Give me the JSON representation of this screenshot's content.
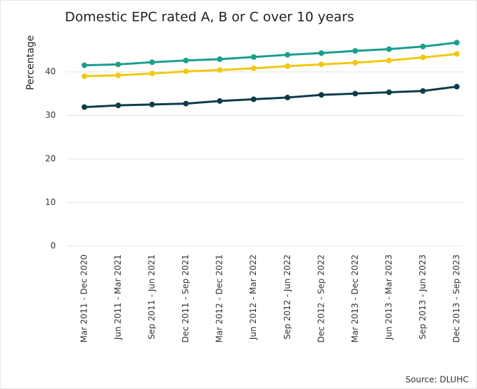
{
  "chart_data": {
    "type": "line",
    "title": "Domestic EPC rated A, B or C over 10 years",
    "y_label": "Percentage",
    "source": "Source: DLUHC",
    "categories": [
      "Mar 2011 - Dec 2020",
      "Jun 2011 - Mar 2021",
      "Sep 2011 - Jun 2021",
      "Dec 2011 - Sep 2021",
      "Mar 2012 - Dec 2021",
      "Jun 2012 - Mar 2022",
      "Sep 2012 - Jun 2022",
      "Dec 2012 - Sep 2022",
      "Mar 2013 - Dec 2022",
      "Jun 2013 - Mar 2023",
      "Sep 2013 - Jun 2023",
      "Dec 2013 - Sep 2023"
    ],
    "series": [
      {
        "color": "#1a9e8f",
        "values": [
          41.5,
          41.7,
          42.2,
          42.6,
          42.9,
          43.4,
          43.9,
          44.3,
          44.8,
          45.2,
          45.8,
          46.7
        ]
      },
      {
        "color": "#f2c811",
        "values": [
          39.0,
          39.2,
          39.6,
          40.1,
          40.4,
          40.8,
          41.3,
          41.7,
          42.1,
          42.6,
          43.3,
          44.1
        ]
      },
      {
        "color": "#0d3b4a",
        "values": [
          31.9,
          32.3,
          32.5,
          32.7,
          33.3,
          33.7,
          34.1,
          34.7,
          35.0,
          35.3,
          35.6,
          36.6
        ]
      }
    ],
    "ylim": [
      0,
      50
    ],
    "yticks": [
      0,
      10,
      20,
      30,
      40
    ],
    "grid": true
  }
}
